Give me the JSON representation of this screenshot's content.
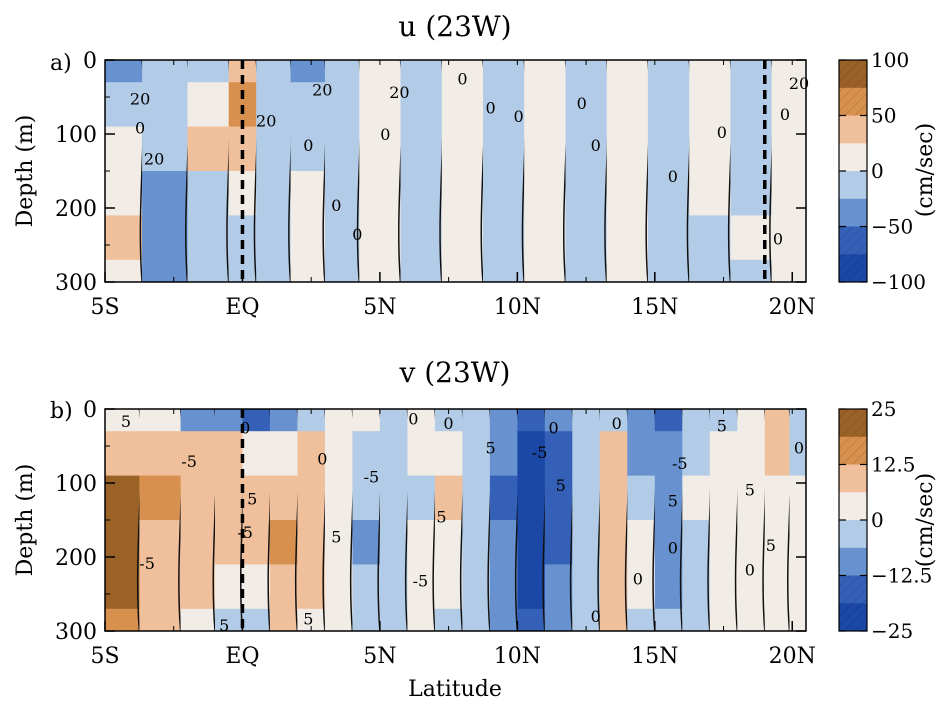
{
  "chart_data": [
    {
      "type": "heatmap",
      "panel_label": "a)",
      "title": "u (23W)",
      "ylabel": "Depth (m)",
      "xlabel": "",
      "xlim": [
        -5,
        20.5
      ],
      "ylim": [
        300,
        0
      ],
      "x_ticks": [
        -5,
        0,
        5,
        10,
        15,
        20
      ],
      "x_tick_labels": [
        "5S",
        "EQ",
        "5N",
        "10N",
        "15N",
        "20N"
      ],
      "y_ticks": [
        0,
        100,
        200,
        300
      ],
      "y_tick_labels": [
        "0",
        "100",
        "200",
        "300"
      ],
      "colorbar": {
        "label": "(cm/sec)",
        "levels": [
          -100,
          -75,
          -50,
          -25,
          0,
          25,
          50,
          75,
          100
        ],
        "tick_values": [
          100,
          50,
          0,
          -50,
          -100
        ],
        "tick_labels": [
          "100",
          "50",
          "0",
          "−50",
          "−100"
        ]
      },
      "contour_labels": [
        "20",
        "20",
        "20",
        "20",
        "20",
        "20",
        "0",
        "0",
        "0",
        "0",
        "0",
        "0",
        "0",
        "0",
        "0",
        "0",
        "0",
        "0",
        "0",
        "0"
      ],
      "reference_lines": [
        {
          "x": 0,
          "style": "dashed",
          "color": "#000000"
        },
        {
          "x": 19,
          "style": "dashed",
          "color": "#000000"
        }
      ],
      "columns": [
        {
          "x": -4.3,
          "values": [
            -30,
            -15,
            5,
            15,
            25,
            20
          ]
        },
        {
          "x": -3.0,
          "values": [
            -10,
            -15,
            -25,
            -40,
            -40,
            -30
          ]
        },
        {
          "x": -1.0,
          "values": [
            -5,
            20,
            30,
            -5,
            -10,
            -10
          ]
        },
        {
          "x": 0.0,
          "values": [
            30,
            60,
            40,
            5,
            -5,
            -5
          ]
        },
        {
          "x": 1.0,
          "values": [
            -20,
            -15,
            -10,
            -5,
            -5,
            -5
          ]
        },
        {
          "x": 2.5,
          "values": [
            -35,
            -15,
            -10,
            5,
            5,
            5
          ]
        },
        {
          "x": 3.5,
          "values": [
            -15,
            -10,
            -10,
            -10,
            -10,
            -10
          ]
        },
        {
          "x": 5.0,
          "values": [
            20,
            5,
            5,
            5,
            5,
            5
          ]
        },
        {
          "x": 6.5,
          "values": [
            -10,
            -10,
            -5,
            -10,
            -10,
            -10
          ]
        },
        {
          "x": 8.0,
          "values": [
            5,
            5,
            5,
            5,
            5,
            5
          ]
        },
        {
          "x": 9.5,
          "values": [
            -10,
            -10,
            -10,
            -10,
            -10,
            -10
          ]
        },
        {
          "x": 11.0,
          "values": [
            5,
            5,
            5,
            5,
            5,
            5
          ]
        },
        {
          "x": 12.5,
          "values": [
            -10,
            -10,
            -10,
            -5,
            -10,
            -10
          ]
        },
        {
          "x": 14.0,
          "values": [
            5,
            5,
            5,
            5,
            5,
            5
          ]
        },
        {
          "x": 15.5,
          "values": [
            -10,
            -10,
            -10,
            -10,
            -10,
            -10
          ]
        },
        {
          "x": 17.0,
          "values": [
            5,
            5,
            5,
            5,
            -5,
            -5
          ]
        },
        {
          "x": 18.5,
          "values": [
            -5,
            -5,
            -5,
            -5,
            5,
            -5
          ]
        },
        {
          "x": 20.0,
          "values": [
            20,
            5,
            5,
            5,
            5,
            5
          ]
        }
      ]
    },
    {
      "type": "heatmap",
      "panel_label": "b)",
      "title": "v (23W)",
      "ylabel": "Depth (m)",
      "xlabel": "Latitude",
      "xlim": [
        -5,
        20.5
      ],
      "ylim": [
        300,
        0
      ],
      "x_ticks": [
        -5,
        0,
        5,
        10,
        15,
        20
      ],
      "x_tick_labels": [
        "5S",
        "EQ",
        "5N",
        "10N",
        "15N",
        "20N"
      ],
      "y_ticks": [
        0,
        100,
        200,
        300
      ],
      "y_tick_labels": [
        "0",
        "100",
        "200",
        "300"
      ],
      "colorbar": {
        "label": "(cm/sec)",
        "levels": [
          -25,
          -18.75,
          -12.5,
          -6.25,
          0,
          6.25,
          12.5,
          18.75,
          25
        ],
        "tick_values": [
          25,
          12.5,
          0,
          -12.5,
          -25
        ],
        "tick_labels": [
          "25",
          "12.5",
          "0",
          "−12.5",
          "−25"
        ]
      },
      "contour_labels": [
        "5",
        "5",
        "5",
        "5",
        "5",
        "5",
        "5",
        "5",
        "5",
        "5",
        "5",
        "5",
        "-5",
        "-5",
        "-5",
        "-5",
        "-5",
        "-5",
        "-5",
        "0",
        "0",
        "0",
        "0",
        "0",
        "0",
        "0",
        "0",
        "0",
        "0",
        "0"
      ],
      "reference_lines": [
        {
          "x": 0,
          "style": "dashed",
          "color": "#000000"
        }
      ],
      "columns": [
        {
          "x": -4.5,
          "values": [
            3,
            12,
            20,
            22,
            20,
            18
          ]
        },
        {
          "x": -3.0,
          "values": [
            2,
            12,
            14,
            12,
            10,
            8
          ]
        },
        {
          "x": -1.5,
          "values": [
            -8,
            8,
            12,
            12,
            10,
            4
          ]
        },
        {
          "x": -0.5,
          "values": [
            -10,
            10,
            10,
            8,
            4,
            -6
          ]
        },
        {
          "x": 0.5,
          "values": [
            -14,
            4,
            8,
            10,
            6,
            -6
          ]
        },
        {
          "x": 1.5,
          "values": [
            -8,
            6,
            12,
            14,
            12,
            8
          ]
        },
        {
          "x": 2.5,
          "values": [
            -4,
            12,
            8,
            12,
            12,
            4
          ]
        },
        {
          "x": 3.5,
          "values": [
            6,
            3,
            4,
            6,
            5,
            2
          ]
        },
        {
          "x": 4.5,
          "values": [
            6,
            -4,
            -6,
            -8,
            -6,
            -4
          ]
        },
        {
          "x": 5.5,
          "values": [
            -2,
            -6,
            -2,
            -4,
            -4,
            -3
          ]
        },
        {
          "x": 6.5,
          "values": [
            3,
            2,
            -2,
            2,
            3,
            2
          ]
        },
        {
          "x": 7.5,
          "values": [
            -6,
            6,
            8,
            6,
            2,
            -2
          ]
        },
        {
          "x": 8.5,
          "values": [
            -4,
            -4,
            -6,
            -6,
            -4,
            -6
          ]
        },
        {
          "x": 9.5,
          "values": [
            -10,
            -12,
            -14,
            -12,
            -10,
            -8
          ]
        },
        {
          "x": 10.5,
          "values": [
            -16,
            -20,
            -22,
            -22,
            -20,
            -18
          ]
        },
        {
          "x": 11.5,
          "values": [
            -12,
            -14,
            -16,
            -14,
            -12,
            -10
          ]
        },
        {
          "x": 12.5,
          "values": [
            -6,
            -4,
            -5,
            -4,
            -4,
            -3
          ]
        },
        {
          "x": 13.5,
          "values": [
            -4,
            10,
            12,
            12,
            10,
            8
          ]
        },
        {
          "x": 14.5,
          "values": [
            -10,
            -8,
            -6,
            4,
            4,
            -2
          ]
        },
        {
          "x": 15.5,
          "values": [
            -14,
            -12,
            -10,
            -10,
            -8,
            -6
          ]
        },
        {
          "x": 16.5,
          "values": [
            -6,
            -6,
            3,
            -4,
            -3,
            -2
          ]
        },
        {
          "x": 17.5,
          "values": [
            -6,
            2,
            2,
            3,
            2,
            2
          ]
        },
        {
          "x": 18.5,
          "values": [
            6,
            4,
            3,
            4,
            3,
            3
          ]
        },
        {
          "x": 19.5,
          "values": [
            10,
            8,
            6,
            4,
            3,
            2
          ]
        },
        {
          "x": 20.3,
          "values": [
            -3,
            -2,
            2,
            2,
            3,
            2
          ]
        }
      ]
    }
  ]
}
